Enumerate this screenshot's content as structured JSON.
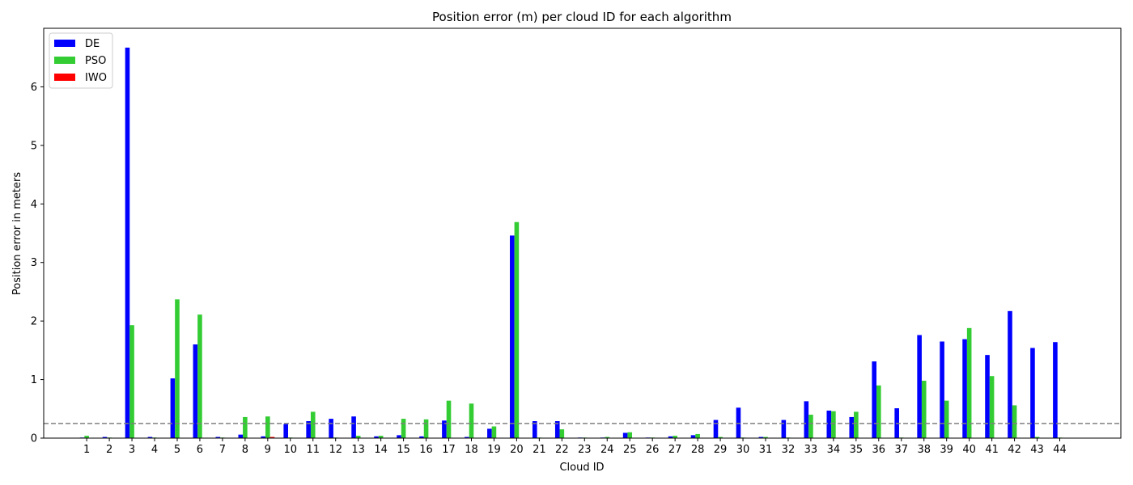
{
  "chart_data": {
    "type": "bar",
    "title": "Position error (m) per cloud ID for each algorithm",
    "xlabel": "Cloud ID",
    "ylabel": "Position error in meters",
    "categories": [
      "1",
      "2",
      "3",
      "4",
      "5",
      "6",
      "7",
      "8",
      "9",
      "10",
      "11",
      "12",
      "13",
      "14",
      "15",
      "16",
      "17",
      "18",
      "19",
      "20",
      "21",
      "22",
      "23",
      "24",
      "25",
      "26",
      "27",
      "28",
      "29",
      "30",
      "31",
      "32",
      "33",
      "34",
      "35",
      "36",
      "37",
      "38",
      "39",
      "40",
      "41",
      "42",
      "43",
      "44"
    ],
    "ylim": [
      0,
      7.0
    ],
    "yticks": [
      0,
      1,
      2,
      3,
      4,
      5,
      6
    ],
    "grid": false,
    "legend_position": "upper-left",
    "reference_line": {
      "value": 0.25,
      "style": "dashed",
      "color": "#808080"
    },
    "series": [
      {
        "name": "DE",
        "color": "#0000ff",
        "values": [
          0.01,
          0.02,
          6.67,
          0.02,
          1.02,
          1.6,
          0.02,
          0.06,
          0.03,
          0.24,
          0.29,
          0.33,
          0.37,
          0.03,
          0.05,
          0.03,
          0.3,
          0.02,
          0.16,
          3.46,
          0.29,
          0.29,
          0.01,
          0.01,
          0.09,
          0.01,
          0.03,
          0.05,
          0.31,
          0.52,
          0.02,
          0.31,
          0.63,
          0.47,
          0.36,
          1.31,
          0.51,
          1.76,
          1.65,
          1.69,
          1.42,
          2.17,
          1.54,
          1.64
        ]
      },
      {
        "name": "PSO",
        "color": "#33cc33",
        "values": [
          0.04,
          0.01,
          1.93,
          0.01,
          2.37,
          2.11,
          0.01,
          0.36,
          0.37,
          0.01,
          0.45,
          0.01,
          0.04,
          0.04,
          0.33,
          0.32,
          0.64,
          0.59,
          0.2,
          3.69,
          0.01,
          0.15,
          0.01,
          0.02,
          0.1,
          0.01,
          0.04,
          0.07,
          0.02,
          0.01,
          0.02,
          0.01,
          0.4,
          0.46,
          0.45,
          0.9,
          0.01,
          0.98,
          0.64,
          1.88,
          1.06,
          0.56,
          0.02,
          0.01
        ]
      },
      {
        "name": "IWO",
        "color": "#ff0000",
        "values": [
          0,
          0,
          0,
          0,
          0,
          0,
          0,
          0,
          0.02,
          0,
          0,
          0,
          0,
          0,
          0,
          0,
          0,
          0,
          0,
          0,
          0,
          0,
          0,
          0,
          0,
          0,
          0,
          0,
          0,
          0,
          0,
          0,
          0,
          0,
          0,
          0,
          0,
          0,
          0,
          0,
          0,
          0,
          0,
          0
        ]
      }
    ]
  }
}
